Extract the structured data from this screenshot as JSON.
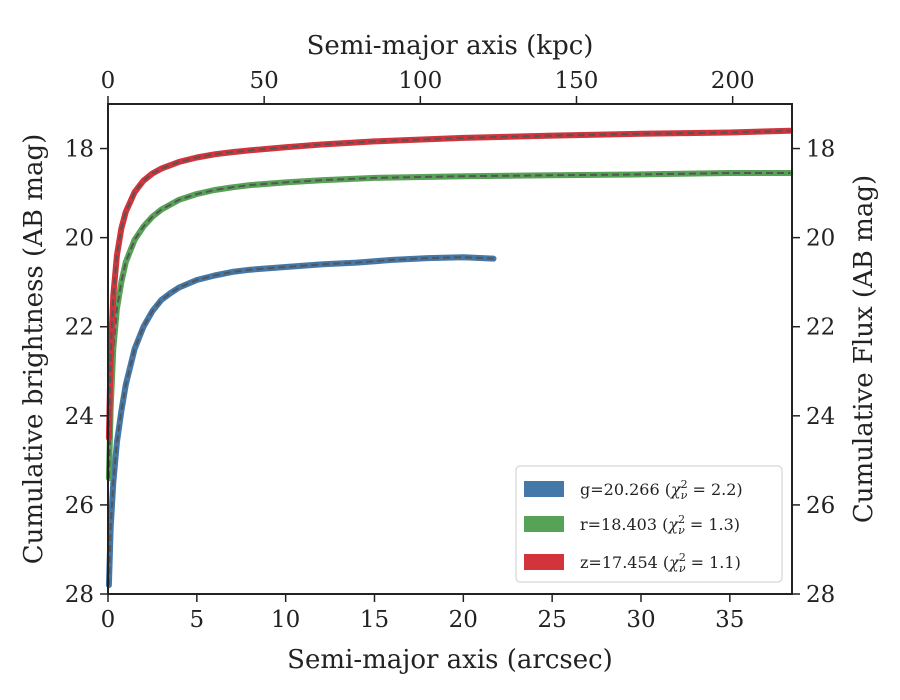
{
  "chart_data": {
    "type": "line",
    "xlabel": "Semi-major axis (arcsec)",
    "ylabel": "Cumulative brightness (AB mag)",
    "top_xlabel": "Semi-major axis (kpc)",
    "right_ylabel": "Cumulative Flux (AB mag)",
    "xlim": [
      0,
      38.5
    ],
    "ylim": [
      28,
      17
    ],
    "y_inverted": true,
    "top_xlim": [
      0,
      219
    ],
    "x_ticks": [
      0,
      5,
      10,
      15,
      20,
      25,
      30,
      35
    ],
    "y_ticks": [
      18,
      20,
      22,
      24,
      26,
      28
    ],
    "top_x_ticks": [
      0,
      50,
      100,
      150,
      200
    ],
    "legend_placement": "lower-right",
    "grid": false,
    "series": [
      {
        "name": "g=20.266 (χ²ν = 2.2)",
        "legend_label_main": "g=20.266 (",
        "legend_label_tail": " = 2.2)",
        "color": "#4478a8",
        "x": [
          0.05,
          0.15,
          0.3,
          0.5,
          0.75,
          1.0,
          1.5,
          2.0,
          2.5,
          3.0,
          3.5,
          4.0,
          5.0,
          6.0,
          7.0,
          8.0,
          10.0,
          12.0,
          14.0,
          16.0,
          18.0,
          20.0,
          21.7
        ],
        "y": [
          27.8,
          26.5,
          25.5,
          24.6,
          23.9,
          23.3,
          22.5,
          22.0,
          21.65,
          21.4,
          21.25,
          21.12,
          20.95,
          20.85,
          20.77,
          20.72,
          20.66,
          20.6,
          20.56,
          20.5,
          20.46,
          20.44,
          20.47
        ]
      },
      {
        "name": "r=18.403 (χ²ν = 1.3)",
        "legend_label_main": "r=18.403 (",
        "legend_label_tail": " = 1.3)",
        "color": "#57a356",
        "x": [
          0.05,
          0.15,
          0.3,
          0.5,
          0.75,
          1.0,
          1.5,
          2.0,
          2.5,
          3.0,
          4.0,
          5.0,
          6.0,
          7.0,
          8.0,
          10.0,
          12.0,
          15.0,
          20.0,
          25.0,
          30.0,
          35.0,
          38.4
        ],
        "y": [
          25.4,
          23.8,
          22.5,
          21.6,
          21.0,
          20.55,
          20.05,
          19.75,
          19.53,
          19.37,
          19.15,
          19.02,
          18.93,
          18.87,
          18.82,
          18.76,
          18.71,
          18.66,
          18.62,
          18.6,
          18.58,
          18.55,
          18.55
        ]
      },
      {
        "name": "z=17.454 (χ²ν = 1.1)",
        "legend_label_main": "z=17.454 (",
        "legend_label_tail": " = 1.1)",
        "color": "#d3333a",
        "x": [
          0.05,
          0.15,
          0.3,
          0.5,
          0.75,
          1.0,
          1.5,
          2.0,
          2.5,
          3.0,
          4.0,
          5.0,
          6.0,
          7.0,
          8.0,
          10.0,
          12.0,
          15.0,
          20.0,
          25.0,
          30.0,
          35.0,
          38.4
        ],
        "y": [
          24.5,
          22.6,
          21.3,
          20.4,
          19.8,
          19.42,
          18.98,
          18.72,
          18.56,
          18.45,
          18.3,
          18.2,
          18.13,
          18.08,
          18.04,
          17.97,
          17.91,
          17.84,
          17.76,
          17.71,
          17.67,
          17.64,
          17.6
        ]
      }
    ]
  }
}
